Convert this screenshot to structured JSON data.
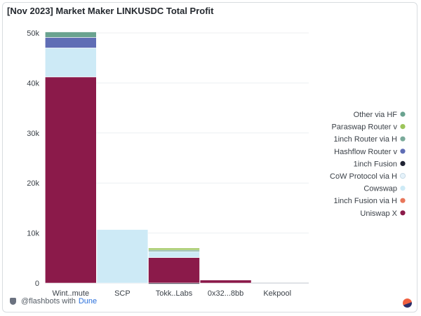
{
  "chart_data": {
    "type": "bar",
    "stacked": true,
    "title": "[Nov 2023] Market Maker LINKUSDC Total Profit",
    "categories": [
      "Wint..mute",
      "SCP",
      "Tokk..Labs",
      "0x32...8bb",
      "Kekpool"
    ],
    "ylim": [
      0,
      50000
    ],
    "yticks": [
      0,
      10000,
      20000,
      30000,
      40000,
      50000
    ],
    "ytick_labels": [
      "0",
      "10k",
      "20k",
      "30k",
      "40k",
      "50k"
    ],
    "grid": true,
    "legend_position": "right",
    "series": [
      {
        "name": "Uniswap X",
        "color": "#8b1a4a",
        "values": [
          41200,
          0,
          5100,
          600,
          0
        ]
      },
      {
        "name": "1inch Fusion via H",
        "color": "#e8765a",
        "values": [
          0,
          0,
          0,
          0,
          0
        ]
      },
      {
        "name": "Cowswap",
        "color": "#cdeaf6",
        "values": [
          5800,
          10700,
          1200,
          0,
          0
        ]
      },
      {
        "name": "CoW Protocol via H",
        "color": "#e6f3fb",
        "values": [
          0,
          0,
          0,
          0,
          0
        ]
      },
      {
        "name": "1inch Fusion",
        "color": "#1f2233",
        "values": [
          0,
          0,
          -200,
          0,
          0
        ]
      },
      {
        "name": "Hashflow Router v",
        "color": "#5f6db5",
        "values": [
          2100,
          0,
          0,
          0,
          0
        ]
      },
      {
        "name": "1inch Router via H",
        "color": "#7aaa9a",
        "values": [
          0,
          0,
          300,
          0,
          0
        ]
      },
      {
        "name": "Paraswap Router v",
        "color": "#9cc55a",
        "values": [
          0,
          0,
          400,
          0,
          0
        ]
      },
      {
        "name": "Other via HF",
        "color": "#6aa390",
        "values": [
          1100,
          0,
          0,
          0,
          0
        ]
      }
    ]
  },
  "footer": {
    "handle": "@flashbots with",
    "brand": "Dune"
  }
}
